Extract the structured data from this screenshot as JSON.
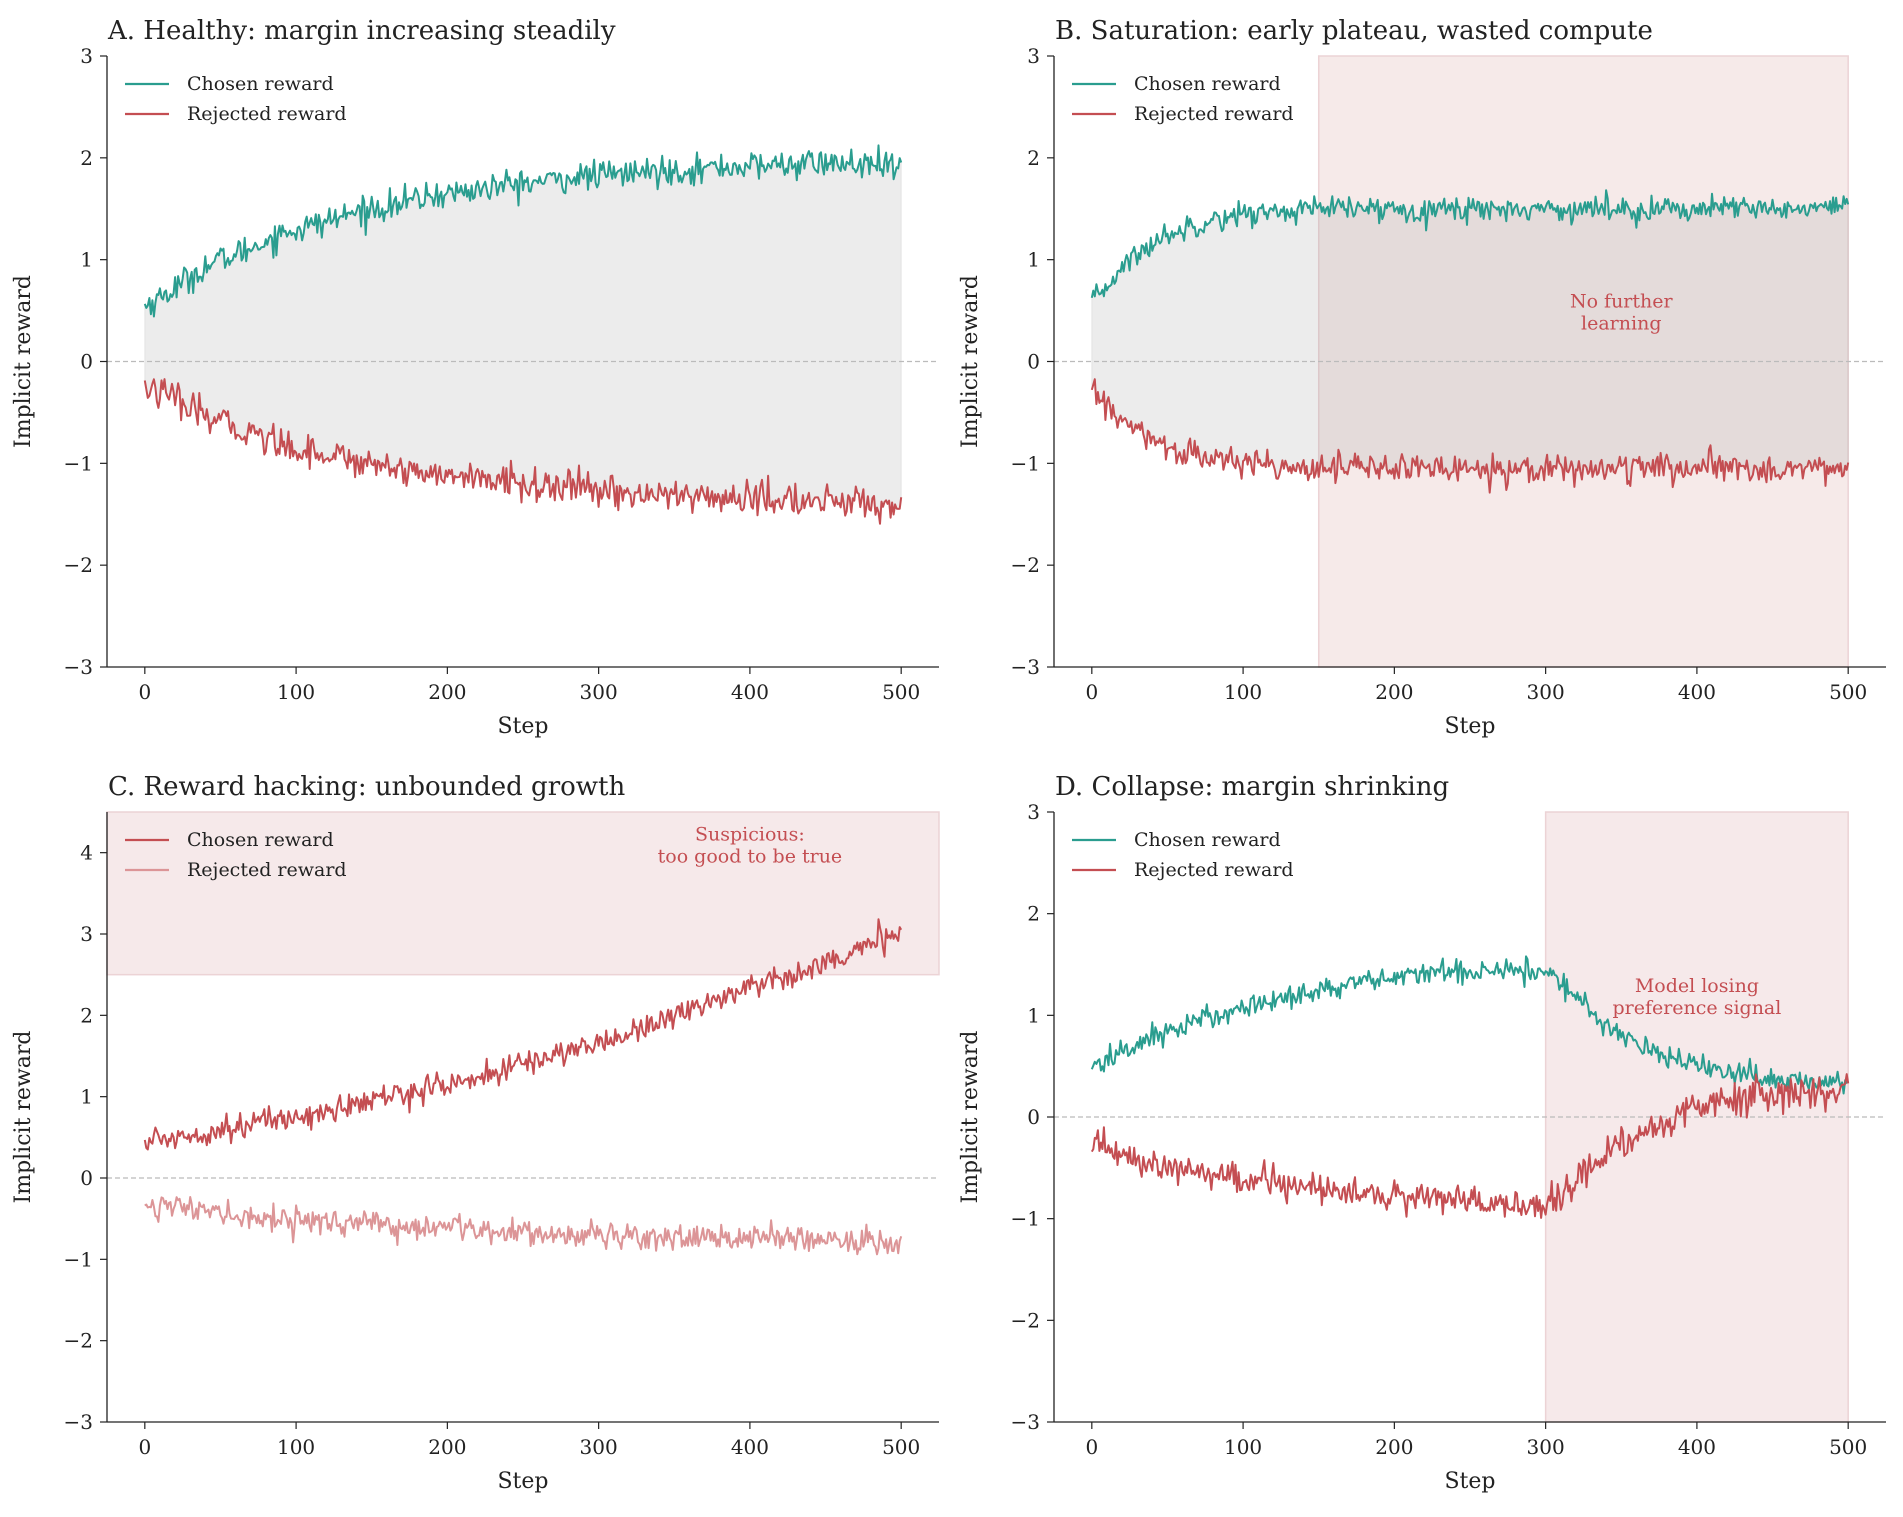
{
  "chart_data": [
    {
      "id": "A",
      "type": "line",
      "title": "A. Healthy: margin increasing steadily",
      "xlabel": "Step",
      "ylabel": "Implicit reward",
      "xlim": [
        -25,
        525
      ],
      "ylim": [
        -3,
        3
      ],
      "xticks": [
        0,
        100,
        200,
        300,
        400,
        500
      ],
      "yticks": [
        -3,
        -2,
        -1,
        0,
        1,
        2,
        3
      ],
      "zero_line": true,
      "fill_between": true,
      "legend": "top-left",
      "series": [
        {
          "name": "Chosen reward",
          "color": "#2a9d8f",
          "x": [
            0,
            50,
            100,
            150,
            200,
            250,
            300,
            350,
            400,
            450,
            500
          ],
          "values": [
            0.55,
            1.0,
            1.3,
            1.5,
            1.65,
            1.75,
            1.83,
            1.88,
            1.92,
            1.95,
            1.9
          ],
          "noise": 0.07
        },
        {
          "name": "Rejected reward",
          "color": "#c44e52",
          "x": [
            0,
            50,
            100,
            150,
            200,
            250,
            300,
            350,
            400,
            450,
            500
          ],
          "values": [
            -0.25,
            -0.6,
            -0.85,
            -1.0,
            -1.12,
            -1.2,
            -1.27,
            -1.32,
            -1.35,
            -1.38,
            -1.4
          ],
          "noise": 0.08
        }
      ],
      "shaded_regions": [],
      "annotations": []
    },
    {
      "id": "B",
      "type": "line",
      "title": "B. Saturation: early plateau, wasted compute",
      "xlabel": "Step",
      "ylabel": "Implicit reward",
      "xlim": [
        -25,
        525
      ],
      "ylim": [
        -3,
        3
      ],
      "xticks": [
        0,
        100,
        200,
        300,
        400,
        500
      ],
      "yticks": [
        -3,
        -2,
        -1,
        0,
        1,
        2,
        3
      ],
      "zero_line": true,
      "fill_between": true,
      "legend": "top-left",
      "series": [
        {
          "name": "Chosen reward",
          "color": "#2a9d8f",
          "x": [
            0,
            25,
            50,
            75,
            100,
            150,
            200,
            300,
            400,
            500
          ],
          "values": [
            0.58,
            1.0,
            1.25,
            1.38,
            1.45,
            1.5,
            1.5,
            1.5,
            1.5,
            1.5
          ],
          "noise": 0.06
        },
        {
          "name": "Rejected reward",
          "color": "#c44e52",
          "x": [
            0,
            25,
            50,
            75,
            100,
            150,
            200,
            300,
            400,
            500
          ],
          "values": [
            -0.3,
            -0.65,
            -0.85,
            -0.95,
            -1.0,
            -1.03,
            -1.05,
            -1.05,
            -1.05,
            -1.05
          ],
          "noise": 0.07
        }
      ],
      "shaded_regions": [
        {
          "x": [
            150,
            500
          ],
          "y": [
            -3,
            3
          ],
          "color": "#f6e9e8"
        }
      ],
      "annotations": [
        {
          "text": [
            "No further",
            "learning"
          ],
          "x": 350,
          "y": 0.45,
          "color": "#c44e52"
        }
      ]
    },
    {
      "id": "C",
      "type": "line",
      "title": "C. Reward hacking: unbounded growth",
      "xlabel": "Step",
      "ylabel": "Implicit reward",
      "xlim": [
        -25,
        525
      ],
      "ylim": [
        -3,
        4.5
      ],
      "xticks": [
        0,
        100,
        200,
        300,
        400,
        500
      ],
      "yticks": [
        -3,
        -2,
        -1,
        0,
        1,
        2,
        3,
        4
      ],
      "zero_line": true,
      "fill_between": false,
      "legend": "top-left",
      "series": [
        {
          "name": "Chosen reward",
          "color": "#c44e52",
          "x": [
            0,
            100,
            200,
            300,
            350,
            400,
            450,
            500
          ],
          "values": [
            0.45,
            0.75,
            1.15,
            1.65,
            2.0,
            2.35,
            2.65,
            3.0
          ],
          "noise": 0.08
        },
        {
          "name": "Rejected reward",
          "color": "#dc9597",
          "x": [
            0,
            50,
            100,
            200,
            300,
            400,
            500
          ],
          "values": [
            -0.3,
            -0.45,
            -0.52,
            -0.62,
            -0.7,
            -0.74,
            -0.78
          ],
          "noise": 0.08
        }
      ],
      "shaded_regions": [
        {
          "x": [
            -25,
            525
          ],
          "y": [
            2.5,
            4.5
          ],
          "color": "#f6e8e9"
        }
      ],
      "annotations": [
        {
          "text": [
            "Suspicious:",
            "too good to be true"
          ],
          "x": 400,
          "y": 4.05,
          "color": "#c44e52"
        }
      ]
    },
    {
      "id": "D",
      "type": "line",
      "title": "D. Collapse: margin shrinking",
      "xlabel": "Step",
      "ylabel": "Implicit reward",
      "xlim": [
        -25,
        525
      ],
      "ylim": [
        -3,
        3
      ],
      "xticks": [
        0,
        100,
        200,
        300,
        400,
        500
      ],
      "yticks": [
        -3,
        -2,
        -1,
        0,
        1,
        2,
        3
      ],
      "zero_line": true,
      "fill_between": false,
      "legend": "top-left",
      "series": [
        {
          "name": "Chosen reward",
          "color": "#2a9d8f",
          "x": [
            0,
            50,
            100,
            150,
            200,
            250,
            300,
            325,
            350,
            400,
            450,
            500
          ],
          "values": [
            0.5,
            0.85,
            1.08,
            1.25,
            1.37,
            1.45,
            1.45,
            1.1,
            0.8,
            0.5,
            0.38,
            0.32
          ],
          "noise": 0.06
        },
        {
          "name": "Rejected reward",
          "color": "#c44e52",
          "x": [
            0,
            50,
            100,
            150,
            200,
            250,
            300,
            325,
            350,
            400,
            450,
            500
          ],
          "values": [
            -0.3,
            -0.5,
            -0.62,
            -0.72,
            -0.78,
            -0.83,
            -0.9,
            -0.55,
            -0.25,
            0.1,
            0.22,
            0.27
          ],
          "noise": 0.08
        }
      ],
      "shaded_regions": [
        {
          "x": [
            300,
            500
          ],
          "y": [
            -3,
            3
          ],
          "color": "#f6e8e9"
        }
      ],
      "annotations": [
        {
          "text": [
            "Model losing",
            "preference signal"
          ],
          "x": 400,
          "y": 1.15,
          "color": "#c44e52"
        }
      ]
    }
  ]
}
